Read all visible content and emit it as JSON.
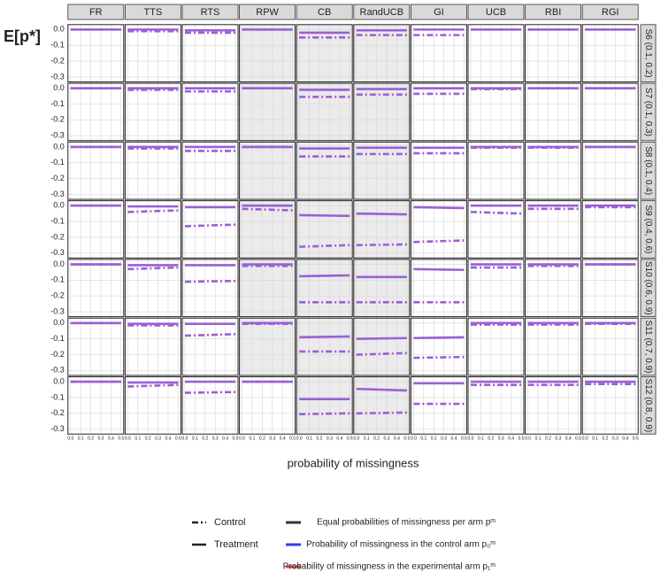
{
  "chart_data": {
    "type": "facet-line",
    "ylabel": "E[p*]",
    "xlabel": "probability of missingness",
    "columns": [
      "FR",
      "TTS",
      "RTS",
      "RPW",
      "CB",
      "RandUCB",
      "GI",
      "UCB",
      "RBI",
      "RGI"
    ],
    "rows": [
      "S6 (0.1, 0.2)",
      "S7 (0.1, 0.3)",
      "S8 (0.1, 0.4)",
      "S9 (0.4, 0.6)",
      "S10 (0.6, 0.9)",
      "S11 (0.7, 0.9)",
      "S12 (0.8, 0.9)"
    ],
    "x": [
      0,
      0.5
    ],
    "xlim": [
      0,
      0.5
    ],
    "xticks": [
      {
        "value": 0,
        "label": "0.0"
      },
      0.1,
      0.2,
      0.3,
      0.4,
      0.5
    ],
    "ylim": [
      -0.32,
      0.02
    ],
    "yticks": [
      {
        "value": 0,
        "label": "0.0"
      },
      -0.1,
      -0.2,
      -0.3
    ],
    "grid": true,
    "line_color": "#9b5fd6",
    "series": [
      {
        "name": "Control",
        "dash": "dashdot"
      },
      {
        "name": "Treatment",
        "dash": "solid"
      }
    ],
    "missingness_legend": [
      {
        "name": "Equal probabilities of missingness per arm pᵐ",
        "color": "#333333"
      },
      {
        "name": "Probability of missingness in the control arm p₀ᵐ",
        "color": "#3a3af0"
      },
      {
        "name": "Probability of missingness in the experimental arm p₁ᵐ",
        "color": "#e8454f"
      }
    ],
    "panels": [
      [
        {
          "control": [
            0,
            0
          ],
          "treatment": [
            0,
            0
          ],
          "shaded": false
        },
        {
          "control": [
            -0.01,
            -0.01
          ],
          "treatment": [
            0,
            0
          ],
          "shaded": false
        },
        {
          "control": [
            -0.02,
            -0.02
          ],
          "treatment": [
            -0.005,
            -0.005
          ],
          "shaded": false
        },
        {
          "control": [
            0,
            0
          ],
          "treatment": [
            0,
            0
          ],
          "shaded": true
        },
        {
          "control": [
            -0.05,
            -0.05
          ],
          "treatment": [
            -0.02,
            -0.02
          ],
          "shaded": true
        },
        {
          "control": [
            -0.035,
            -0.035
          ],
          "treatment": [
            -0.005,
            -0.005
          ],
          "shaded": true
        },
        {
          "control": [
            -0.035,
            -0.035
          ],
          "treatment": [
            0,
            0
          ],
          "shaded": false
        },
        {
          "control": [
            0,
            0
          ],
          "treatment": [
            0,
            0
          ],
          "shaded": false
        },
        {
          "control": [
            0,
            0
          ],
          "treatment": [
            0,
            0
          ],
          "shaded": false
        },
        {
          "control": [
            0,
            0
          ],
          "treatment": [
            0,
            0
          ],
          "shaded": false
        }
      ],
      [
        {
          "control": [
            0,
            0
          ],
          "treatment": [
            0,
            0
          ],
          "shaded": false
        },
        {
          "control": [
            -0.01,
            -0.01
          ],
          "treatment": [
            0,
            0
          ],
          "shaded": false
        },
        {
          "control": [
            -0.02,
            -0.02
          ],
          "treatment": [
            0,
            0
          ],
          "shaded": false
        },
        {
          "control": [
            0,
            0
          ],
          "treatment": [
            0,
            0
          ],
          "shaded": true
        },
        {
          "control": [
            -0.055,
            -0.055
          ],
          "treatment": [
            -0.01,
            -0.01
          ],
          "shaded": true
        },
        {
          "control": [
            -0.04,
            -0.04
          ],
          "treatment": [
            -0.005,
            -0.005
          ],
          "shaded": true
        },
        {
          "control": [
            -0.035,
            -0.035
          ],
          "treatment": [
            0,
            0
          ],
          "shaded": false
        },
        {
          "control": [
            -0.005,
            -0.005
          ],
          "treatment": [
            0,
            0
          ],
          "shaded": false
        },
        {
          "control": [
            0,
            0
          ],
          "treatment": [
            0,
            0
          ],
          "shaded": false
        },
        {
          "control": [
            0,
            0
          ],
          "treatment": [
            0,
            0
          ],
          "shaded": false
        }
      ],
      [
        {
          "control": [
            0,
            0
          ],
          "treatment": [
            0,
            0
          ],
          "shaded": false
        },
        {
          "control": [
            -0.01,
            -0.01
          ],
          "treatment": [
            0,
            0
          ],
          "shaded": false
        },
        {
          "control": [
            -0.025,
            -0.025
          ],
          "treatment": [
            0,
            0
          ],
          "shaded": false
        },
        {
          "control": [
            0,
            0
          ],
          "treatment": [
            0,
            0
          ],
          "shaded": true
        },
        {
          "control": [
            -0.06,
            -0.06
          ],
          "treatment": [
            -0.01,
            -0.01
          ],
          "shaded": true
        },
        {
          "control": [
            -0.045,
            -0.045
          ],
          "treatment": [
            -0.005,
            -0.005
          ],
          "shaded": true
        },
        {
          "control": [
            -0.04,
            -0.04
          ],
          "treatment": [
            -0.005,
            -0.005
          ],
          "shaded": false
        },
        {
          "control": [
            -0.005,
            -0.005
          ],
          "treatment": [
            0,
            0
          ],
          "shaded": false
        },
        {
          "control": [
            -0.005,
            -0.005
          ],
          "treatment": [
            0,
            0
          ],
          "shaded": false
        },
        {
          "control": [
            0,
            0
          ],
          "treatment": [
            0,
            0
          ],
          "shaded": false
        }
      ],
      [
        {
          "control": [
            0,
            0
          ],
          "treatment": [
            0,
            0
          ],
          "shaded": false
        },
        {
          "control": [
            -0.04,
            -0.03
          ],
          "treatment": [
            -0.005,
            -0.005
          ],
          "shaded": false
        },
        {
          "control": [
            -0.13,
            -0.12
          ],
          "treatment": [
            -0.01,
            -0.01
          ],
          "shaded": false
        },
        {
          "control": [
            -0.02,
            -0.03
          ],
          "treatment": [
            0,
            0
          ],
          "shaded": true
        },
        {
          "control": [
            -0.26,
            -0.25
          ],
          "treatment": [
            -0.06,
            -0.065
          ],
          "shaded": true
        },
        {
          "control": [
            -0.25,
            -0.245
          ],
          "treatment": [
            -0.05,
            -0.055
          ],
          "shaded": true
        },
        {
          "control": [
            -0.23,
            -0.22
          ],
          "treatment": [
            -0.01,
            -0.015
          ],
          "shaded": false
        },
        {
          "control": [
            -0.04,
            -0.05
          ],
          "treatment": [
            0,
            0
          ],
          "shaded": false
        },
        {
          "control": [
            -0.02,
            -0.02
          ],
          "treatment": [
            0,
            0
          ],
          "shaded": false
        },
        {
          "control": [
            -0.01,
            -0.01
          ],
          "treatment": [
            0,
            0
          ],
          "shaded": false
        }
      ],
      [
        {
          "control": [
            0,
            0
          ],
          "treatment": [
            0,
            0
          ],
          "shaded": false
        },
        {
          "control": [
            -0.03,
            -0.02
          ],
          "treatment": [
            -0.005,
            -0.005
          ],
          "shaded": false
        },
        {
          "control": [
            -0.11,
            -0.105
          ],
          "treatment": [
            -0.005,
            -0.005
          ],
          "shaded": false
        },
        {
          "control": [
            -0.01,
            -0.01
          ],
          "treatment": [
            0,
            0
          ],
          "shaded": true
        },
        {
          "control": [
            -0.24,
            -0.24
          ],
          "treatment": [
            -0.075,
            -0.07
          ],
          "shaded": true
        },
        {
          "control": [
            -0.24,
            -0.24
          ],
          "treatment": [
            -0.08,
            -0.08
          ],
          "shaded": true
        },
        {
          "control": [
            -0.24,
            -0.24
          ],
          "treatment": [
            -0.03,
            -0.035
          ],
          "shaded": false
        },
        {
          "control": [
            -0.02,
            -0.02
          ],
          "treatment": [
            0,
            0
          ],
          "shaded": false
        },
        {
          "control": [
            -0.01,
            -0.01
          ],
          "treatment": [
            0,
            0
          ],
          "shaded": false
        },
        {
          "control": [
            0,
            0
          ],
          "treatment": [
            0,
            0
          ],
          "shaded": false
        }
      ],
      [
        {
          "control": [
            0,
            0
          ],
          "treatment": [
            0,
            0
          ],
          "shaded": false
        },
        {
          "control": [
            -0.015,
            -0.015
          ],
          "treatment": [
            -0.005,
            -0.005
          ],
          "shaded": false
        },
        {
          "control": [
            -0.08,
            -0.07
          ],
          "treatment": [
            -0.005,
            -0.005
          ],
          "shaded": false
        },
        {
          "control": [
            -0.005,
            -0.005
          ],
          "treatment": [
            0,
            0
          ],
          "shaded": true
        },
        {
          "control": [
            -0.18,
            -0.18
          ],
          "treatment": [
            -0.09,
            -0.085
          ],
          "shaded": true
        },
        {
          "control": [
            -0.2,
            -0.19
          ],
          "treatment": [
            -0.1,
            -0.095
          ],
          "shaded": true
        },
        {
          "control": [
            -0.22,
            -0.215
          ],
          "treatment": [
            -0.095,
            -0.09
          ],
          "shaded": false
        },
        {
          "control": [
            -0.01,
            -0.01
          ],
          "treatment": [
            0,
            0
          ],
          "shaded": false
        },
        {
          "control": [
            -0.01,
            -0.01
          ],
          "treatment": [
            0,
            0
          ],
          "shaded": false
        },
        {
          "control": [
            -0.005,
            -0.005
          ],
          "treatment": [
            0,
            0
          ],
          "shaded": false
        }
      ],
      [
        {
          "control": [
            0,
            0
          ],
          "treatment": [
            0,
            0
          ],
          "shaded": false
        },
        {
          "control": [
            -0.03,
            -0.02
          ],
          "treatment": [
            -0.005,
            -0.005
          ],
          "shaded": false
        },
        {
          "control": [
            -0.07,
            -0.065
          ],
          "treatment": [
            0,
            0
          ],
          "shaded": false
        },
        {
          "control": [
            0,
            0
          ],
          "treatment": [
            0,
            0
          ],
          "shaded": false
        },
        {
          "control": [
            -0.205,
            -0.2
          ],
          "treatment": [
            -0.11,
            -0.11
          ],
          "shaded": true
        },
        {
          "control": [
            -0.2,
            -0.195
          ],
          "treatment": [
            -0.045,
            -0.055
          ],
          "shaded": true
        },
        {
          "control": [
            -0.14,
            -0.14
          ],
          "treatment": [
            -0.01,
            -0.01
          ],
          "shaded": false
        },
        {
          "control": [
            -0.02,
            -0.02
          ],
          "treatment": [
            0,
            0
          ],
          "shaded": false
        },
        {
          "control": [
            -0.02,
            -0.02
          ],
          "treatment": [
            0,
            0
          ],
          "shaded": false
        },
        {
          "control": [
            -0.015,
            -0.015
          ],
          "treatment": [
            0,
            0
          ],
          "shaded": false
        }
      ]
    ]
  }
}
